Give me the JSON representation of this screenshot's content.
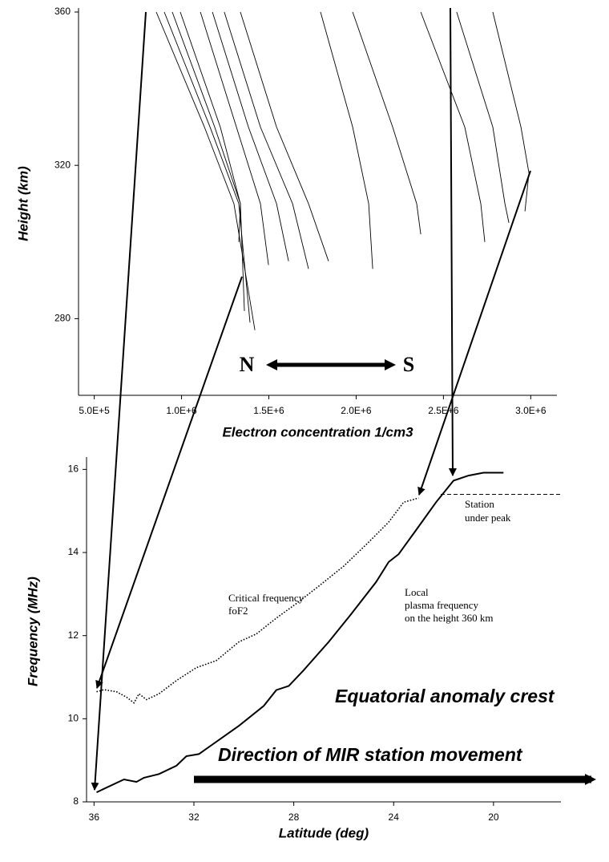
{
  "chart_data": [
    {
      "type": "line",
      "xlabel": "Electron concentration 1/cm3",
      "ylabel": "Height (km)",
      "xlim": [
        410000,
        3150000
      ],
      "ylim": [
        260,
        360
      ],
      "xticks": [
        {
          "value": 500000,
          "label": "5.0E+5"
        },
        {
          "value": 1000000,
          "label": "1.0E+6"
        },
        {
          "value": 1500000,
          "label": "1.5E+6"
        },
        {
          "value": 2000000,
          "label": "2.0E+6"
        },
        {
          "value": 2500000,
          "label": "2.5E+6"
        },
        {
          "value": 3000000,
          "label": "3.0E+6"
        }
      ],
      "yticks": [
        280,
        320,
        360
      ],
      "annotations": [
        "N",
        "S"
      ],
      "series": [
        {
          "color": "#000000",
          "x": [
            855000,
            1131000,
            1300000,
            1420000
          ],
          "values": [
            360,
            330,
            310,
            277
          ]
        },
        {
          "color": "#000000",
          "x": [
            901000,
            1163000,
            1328000,
            1392000
          ],
          "values": [
            360,
            330,
            310,
            279
          ]
        },
        {
          "color": "#000000",
          "x": [
            947000,
            1190000,
            1337000,
            1360000
          ],
          "values": [
            360,
            330,
            310,
            282
          ]
        },
        {
          "color": "#000000",
          "x": [
            993000,
            1222000,
            1337000,
            1328000
          ],
          "values": [
            360,
            330,
            310,
            300
          ]
        },
        {
          "color": "#000000",
          "x": [
            1108000,
            1314000,
            1452000,
            1498000
          ],
          "values": [
            360,
            330,
            310,
            294
          ]
        },
        {
          "color": "#000000",
          "x": [
            1177000,
            1383000,
            1544000,
            1613000
          ],
          "values": [
            360,
            330,
            310,
            295
          ]
        },
        {
          "color": "#000000",
          "x": [
            1245000,
            1452000,
            1636000,
            1727000
          ],
          "values": [
            360,
            330,
            310,
            293
          ]
        },
        {
          "color": "#000000",
          "x": [
            1337000,
            1544000,
            1727000,
            1842000
          ],
          "values": [
            360,
            330,
            310,
            295
          ]
        },
        {
          "color": "#000000",
          "x": [
            1796000,
            1980000,
            2072000,
            2095000
          ],
          "values": [
            360,
            330,
            310,
            293
          ]
        },
        {
          "color": "#000000",
          "x": [
            1980000,
            2209000,
            2347000,
            2370000
          ],
          "values": [
            360,
            330,
            310,
            302
          ]
        },
        {
          "color": "#000000",
          "x": [
            2370000,
            2622000,
            2714000,
            2737000
          ],
          "values": [
            360,
            330,
            310,
            300
          ]
        },
        {
          "color": "#000000",
          "x": [
            2576000,
            2783000,
            2852000,
            2875000
          ],
          "values": [
            360,
            330,
            310,
            305
          ]
        },
        {
          "color": "#000000",
          "x": [
            2783000,
            2944000,
            2990000,
            2967000
          ],
          "values": [
            360,
            330,
            318,
            308
          ]
        }
      ]
    },
    {
      "type": "line",
      "xlabel": "Latitude (deg)",
      "ylabel": "Frequency  (MHz)",
      "xlim": [
        36.3,
        17.3
      ],
      "ylim": [
        8,
        16.2
      ],
      "xticks": [
        36,
        32,
        28,
        24,
        20
      ],
      "yticks": [
        8,
        10,
        12,
        14,
        16
      ],
      "hline": 15.4,
      "annotations": [
        "Critical frequency",
        "foF2",
        "Local",
        "plasma frequency",
        "on the height 360 km",
        "Station",
        "under peak",
        "Equatorial anomaly crest",
        "Direction of MIR station movement"
      ],
      "series": [
        {
          "color": "#000000",
          "style": "dotted",
          "x": [
            35.9,
            35.6,
            35.1,
            34.7,
            34.4,
            34.2,
            33.9,
            33.4,
            32.7,
            31.9,
            31.1,
            30.2,
            29.5,
            28.7,
            27.9,
            27.0,
            26.0,
            25.0,
            24.2,
            23.6,
            23.0
          ],
          "values": [
            10.65,
            10.7,
            10.65,
            10.52,
            10.38,
            10.6,
            10.46,
            10.6,
            10.92,
            11.23,
            11.4,
            11.85,
            12.04,
            12.42,
            12.77,
            13.19,
            13.67,
            14.25,
            14.73,
            15.21,
            15.31
          ]
        },
        {
          "color": "#000000",
          "style": "solid",
          "x": [
            35.9,
            34.8,
            34.3,
            34.0,
            33.4,
            32.7,
            32.3,
            31.8,
            30.2,
            29.2,
            28.7,
            28.2,
            27.6,
            26.6,
            25.7,
            24.7,
            24.2,
            23.8,
            23.1,
            22.3,
            21.6,
            21.0,
            20.4,
            19.6
          ],
          "values": [
            8.23,
            8.54,
            8.48,
            8.58,
            8.67,
            8.87,
            9.1,
            9.15,
            9.83,
            10.31,
            10.69,
            10.79,
            11.17,
            11.85,
            12.52,
            13.29,
            13.77,
            13.96,
            14.54,
            15.21,
            15.73,
            15.85,
            15.92,
            15.92
          ]
        }
      ]
    }
  ]
}
